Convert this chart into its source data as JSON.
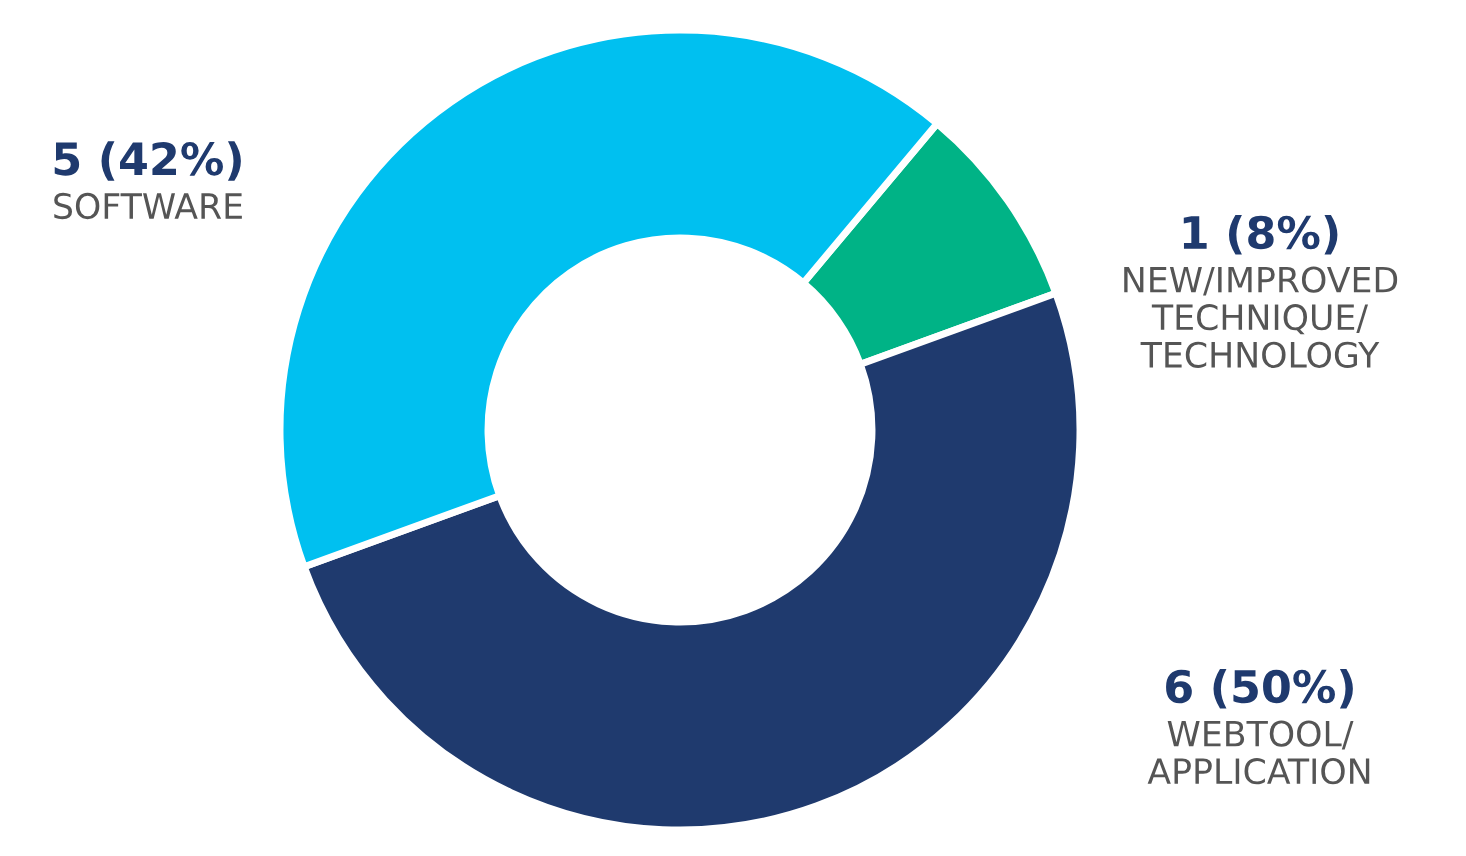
{
  "chart_data": {
    "type": "donut",
    "categories": [
      "NEW/IMPROVED\nTECHNIQUE/\nTECHNOLOGY",
      "WEBTOOL/\nAPPLICATION",
      "SOFTWARE"
    ],
    "values": [
      1,
      6,
      5
    ],
    "value_labels": [
      "1 (8%)",
      "6 (50%)",
      "5 (42%)"
    ],
    "colors": [
      "#00b386",
      "#1f3a6e",
      "#00c0f0"
    ]
  }
}
